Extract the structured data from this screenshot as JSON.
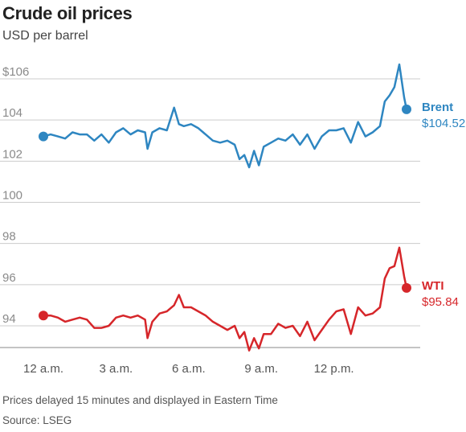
{
  "chart_data": {
    "type": "line",
    "title": "Crude oil prices",
    "subtitle": "USD per barrel",
    "xlabel": "",
    "ylabel": "",
    "x_ticks": [
      "12 a.m.",
      "3 a.m.",
      "6 a.m.",
      "9 a.m.",
      "12 p.m."
    ],
    "x_tick_hours": [
      0,
      3,
      6,
      9,
      12
    ],
    "xlim_hours": [
      0,
      15.4
    ],
    "y_ticks": [
      "$106",
      "104",
      "102",
      "100",
      "98",
      "96",
      "94"
    ],
    "y_tick_values": [
      106,
      104,
      102,
      100,
      98,
      96,
      94
    ],
    "ylim": [
      92.5,
      107
    ],
    "grid": true,
    "series": [
      {
        "name": "Brent",
        "color": "#2e86c1",
        "end_label": "Brent",
        "end_value_label": "$104.52",
        "x_hours": [
          0,
          0.3,
          0.6,
          0.9,
          1.2,
          1.5,
          1.8,
          2.1,
          2.4,
          2.7,
          3.0,
          3.3,
          3.6,
          3.9,
          4.2,
          4.3,
          4.5,
          4.8,
          5.1,
          5.4,
          5.6,
          5.8,
          6.1,
          6.4,
          6.7,
          7.0,
          7.3,
          7.6,
          7.9,
          8.1,
          8.3,
          8.5,
          8.7,
          8.9,
          9.1,
          9.4,
          9.7,
          10.0,
          10.3,
          10.6,
          10.9,
          11.2,
          11.5,
          11.8,
          12.1,
          12.4,
          12.7,
          13.0,
          13.3,
          13.6,
          13.9,
          14.1,
          14.3,
          14.5,
          14.7,
          14.9,
          15.0
        ],
        "values": [
          103.2,
          103.3,
          103.2,
          103.1,
          103.4,
          103.3,
          103.3,
          103.0,
          103.3,
          102.9,
          103.4,
          103.6,
          103.3,
          103.5,
          103.4,
          102.6,
          103.4,
          103.6,
          103.5,
          104.6,
          103.8,
          103.7,
          103.8,
          103.6,
          103.3,
          103.0,
          102.9,
          103.0,
          102.8,
          102.1,
          102.3,
          101.7,
          102.5,
          101.8,
          102.7,
          102.9,
          103.1,
          103.0,
          103.3,
          102.8,
          103.3,
          102.6,
          103.2,
          103.5,
          103.5,
          103.6,
          102.9,
          103.9,
          103.2,
          103.4,
          103.7,
          104.9,
          105.2,
          105.6,
          106.7,
          105.1,
          104.52
        ]
      },
      {
        "name": "WTI",
        "color": "#d6262a",
        "end_label": "WTI",
        "end_value_label": "$95.84",
        "x_hours": [
          0,
          0.3,
          0.6,
          0.9,
          1.2,
          1.5,
          1.8,
          2.1,
          2.4,
          2.7,
          3.0,
          3.3,
          3.6,
          3.9,
          4.2,
          4.3,
          4.5,
          4.8,
          5.1,
          5.4,
          5.6,
          5.8,
          6.1,
          6.4,
          6.7,
          7.0,
          7.3,
          7.6,
          7.9,
          8.1,
          8.3,
          8.5,
          8.7,
          8.9,
          9.1,
          9.4,
          9.7,
          10.0,
          10.3,
          10.6,
          10.9,
          11.2,
          11.5,
          11.8,
          12.1,
          12.4,
          12.7,
          13.0,
          13.3,
          13.6,
          13.9,
          14.1,
          14.3,
          14.5,
          14.7,
          14.9,
          15.0
        ],
        "values": [
          94.5,
          94.5,
          94.4,
          94.2,
          94.3,
          94.4,
          94.3,
          93.9,
          93.9,
          94.0,
          94.4,
          94.5,
          94.4,
          94.5,
          94.3,
          93.4,
          94.2,
          94.6,
          94.7,
          95.0,
          95.5,
          94.9,
          94.9,
          94.7,
          94.5,
          94.2,
          94.0,
          93.8,
          94.0,
          93.4,
          93.7,
          92.8,
          93.4,
          92.9,
          93.6,
          93.6,
          94.1,
          93.9,
          94.0,
          93.5,
          94.2,
          93.3,
          93.8,
          94.3,
          94.7,
          94.8,
          93.6,
          94.9,
          94.5,
          94.6,
          94.9,
          96.3,
          96.8,
          96.9,
          97.8,
          96.4,
          95.84
        ]
      }
    ]
  },
  "footer": {
    "note": "Prices delayed 15 minutes and displayed in Eastern Time",
    "source": "Source: LSEG"
  }
}
